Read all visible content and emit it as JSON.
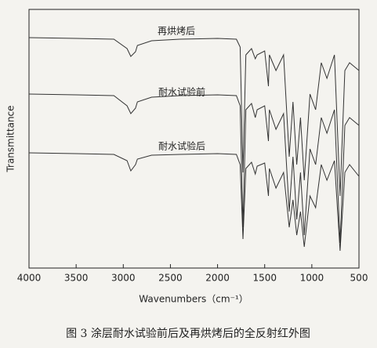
{
  "chart_data": {
    "type": "line",
    "caption": "图 3 涂层耐水试验前后及再烘烤后的全反射红外图",
    "x_label": "Wavenumbers（cm⁻¹）",
    "y_label": "Transmittance",
    "x": [
      4000,
      3500,
      3100,
      2960,
      2920,
      2870,
      2850,
      2700,
      2400,
      2000,
      1800,
      1760,
      1730,
      1700,
      1640,
      1600,
      1580,
      1500,
      1460,
      1450,
      1380,
      1300,
      1240,
      1200,
      1160,
      1120,
      1080,
      1020,
      960,
      900,
      840,
      760,
      700,
      650,
      600,
      500
    ],
    "xlim": [
      4000,
      500
    ],
    "xticks": [
      4000,
      3500,
      3000,
      2500,
      2000,
      1500,
      1000,
      500
    ],
    "ylim": [
      0,
      330
    ],
    "series": [
      {
        "name": "再烘烤后",
        "color": "#333333",
        "values": [
          294,
          293,
          292,
          280,
          270,
          276,
          284,
          290,
          292,
          293,
          292,
          282,
          122,
          272,
          280,
          267,
          272,
          277,
          232,
          272,
          252,
          272,
          142,
          212,
          132,
          192,
          112,
          222,
          202,
          262,
          242,
          272,
          92,
          252,
          262,
          252
        ]
      },
      {
        "name": "耐水试验前",
        "color": "#333333",
        "values": [
          222,
          221,
          220,
          207,
          197,
          204,
          212,
          218,
          220,
          221,
          220,
          207,
          52,
          202,
          210,
          192,
          202,
          207,
          162,
          202,
          177,
          197,
          72,
          142,
          62,
          122,
          42,
          152,
          132,
          192,
          172,
          202,
          32,
          182,
          192,
          182
        ]
      },
      {
        "name": "耐水试验后",
        "color": "#333333",
        "values": [
          147,
          146,
          145,
          137,
          124,
          132,
          139,
          144,
          145,
          146,
          145,
          132,
          37,
          127,
          135,
          120,
          130,
          134,
          92,
          127,
          102,
          122,
          52,
          87,
          42,
          72,
          27,
          92,
          77,
          132,
          112,
          137,
          22,
          122,
          132,
          117
        ]
      }
    ]
  }
}
